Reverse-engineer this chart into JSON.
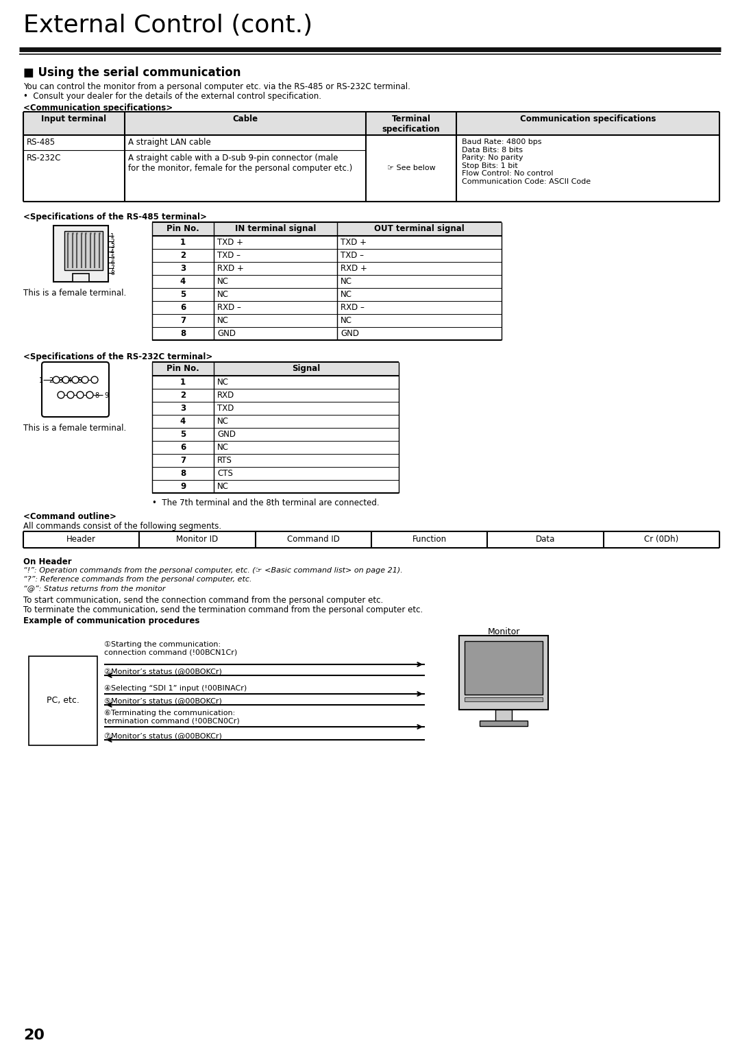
{
  "title": "External Control (cont.)",
  "section_title": "■ Using the serial communication",
  "intro_line1": "You can control the monitor from a personal computer etc. via the RS-485 or RS-232C terminal.",
  "intro_line2": "•  Consult your dealer for the details of the external control specification.",
  "comm_spec_title": "<Communication specifications>",
  "comm_table_headers": [
    "Input terminal",
    "Cable",
    "Terminal\nspecification",
    "Communication specifications"
  ],
  "rs485_row": [
    "RS-485",
    "A straight LAN cable"
  ],
  "rs232c_row": [
    "RS-232C",
    "A straight cable with a D-sub 9-pin connector (male\nfor the monitor, female for the personal computer etc.)"
  ],
  "see_below": "☞ See below",
  "comm_spec_text": "Baud Rate: 4800 bps\nData Bits: 8 bits\nParity: No parity\nStop Bits: 1 bit\nFlow Control: No control\nCommunication Code: ASCII Code",
  "rs485_title": "<Specifications of the RS-485 terminal>",
  "rs485_headers": [
    "Pin No.",
    "IN terminal signal",
    "OUT terminal signal"
  ],
  "rs485_rows": [
    [
      "1",
      "TXD +",
      "TXD +"
    ],
    [
      "2",
      "TXD –",
      "TXD –"
    ],
    [
      "3",
      "RXD +",
      "RXD +"
    ],
    [
      "4",
      "NC",
      "NC"
    ],
    [
      "5",
      "NC",
      "NC"
    ],
    [
      "6",
      "RXD –",
      "RXD –"
    ],
    [
      "7",
      "NC",
      "NC"
    ],
    [
      "8",
      "GND",
      "GND"
    ]
  ],
  "female_terminal": "This is a female terminal.",
  "rs232_title": "<Specifications of the RS-232C terminal>",
  "rs232_headers": [
    "Pin No.",
    "Signal"
  ],
  "rs232_rows": [
    [
      "1",
      "NC"
    ],
    [
      "2",
      "RXD"
    ],
    [
      "3",
      "TXD"
    ],
    [
      "4",
      "NC"
    ],
    [
      "5",
      "GND"
    ],
    [
      "6",
      "NC"
    ],
    [
      "7",
      "RTS"
    ],
    [
      "8",
      "CTS"
    ],
    [
      "9",
      "NC"
    ]
  ],
  "rs232_footnote": "•  The 7th terminal and the 8th terminal are connected.",
  "cmd_outline_title": "<Command outline>",
  "cmd_outline_desc": "All commands consist of the following segments.",
  "cmd_table_headers": [
    "Header",
    "Monitor ID",
    "Command ID",
    "Function",
    "Data",
    "Cr (0Dh)"
  ],
  "on_header_title": "On Header",
  "on_header_line1": "“!”: Operation commands from the personal computer, etc. (☞ <Basic command list> on page 21).",
  "on_header_line2": "“?”: Reference commands from the personal computer, etc.",
  "on_header_line3": "“@”: Status returns from the monitor",
  "on_header_extra1": "To start communication, send the connection command from the personal computer etc.",
  "on_header_extra2": "To terminate the communication, send the termination command from the personal computer etc.",
  "example_title": "Example of communication procedures",
  "step1_text": "①Starting the communication:\nconnection command (!00BCN1Cr)",
  "step2_text": "②Monitor’s status (@00BOKCr)",
  "step3_text": "④Selecting “SDI 1” input (!00BINACr)",
  "step4_text": "⑤Monitor’s status (@00BOKCr)",
  "step5_text": "⑥Terminating the communication:\ntermination command (!00BCN0Cr)",
  "step6_text": "⑦Monitor’s status (@00BOKCr)",
  "pc_label": "PC, etc.",
  "monitor_label": "Monitor",
  "page_number": "20",
  "bg_color": "#ffffff",
  "black": "#000000",
  "gray_light": "#cccccc",
  "gray_med": "#999999",
  "gray_dark": "#444444",
  "header_bg": "#e0e0e0"
}
